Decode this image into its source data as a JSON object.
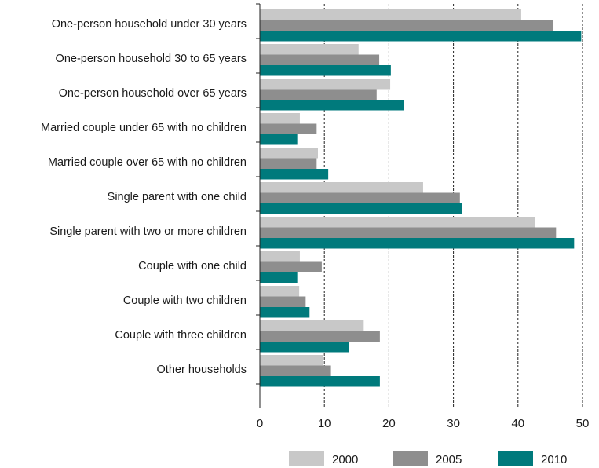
{
  "chart_data": {
    "type": "bar",
    "orientation": "horizontal",
    "title": "",
    "xlabel": "",
    "ylabel": "",
    "xlim": [
      0,
      50
    ],
    "x_ticks": [
      0,
      10,
      20,
      30,
      40,
      50
    ],
    "grid": "vertical dashed",
    "legend_position": "bottom",
    "categories": [
      "One-person household under 30 years",
      "One-person household 30 to 65 years",
      "One-person household over 65 years",
      "Married couple under 65 with no children",
      "Married couple over 65 with no children",
      "Single parent with one child",
      "Single parent with two or more children",
      "Couple with one child",
      "Couple with two children",
      "Couple with three children",
      "Other households"
    ],
    "series": [
      {
        "name": "2000",
        "color": "#c8c8c8",
        "values": [
          40.5,
          15.3,
          20.2,
          6.2,
          9.0,
          25.3,
          42.7,
          6.2,
          6.1,
          16.1,
          9.8
        ]
      },
      {
        "name": "2005",
        "color": "#8e8e8e",
        "values": [
          45.5,
          18.5,
          18.1,
          8.8,
          8.8,
          31.0,
          45.9,
          9.6,
          7.1,
          18.6,
          10.9
        ]
      },
      {
        "name": "2010",
        "color": "#007a7c",
        "values": [
          49.8,
          20.3,
          22.3,
          5.8,
          10.6,
          31.3,
          48.7,
          5.8,
          7.7,
          13.8,
          18.6
        ]
      }
    ]
  }
}
